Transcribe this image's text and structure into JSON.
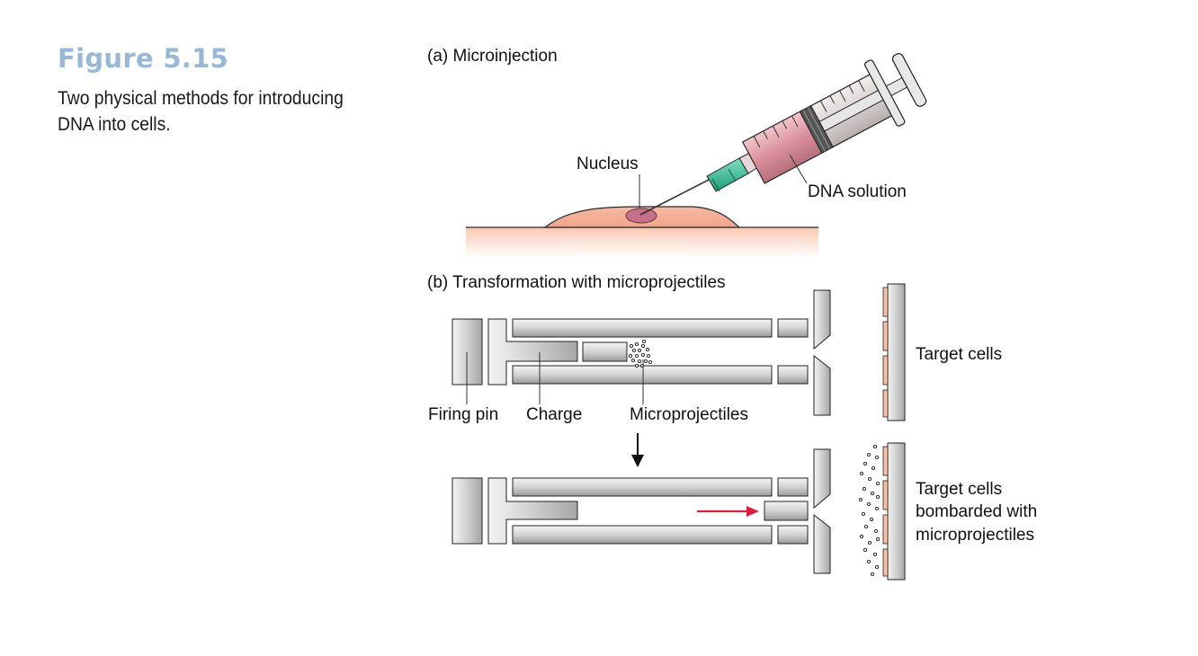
{
  "figure": {
    "title": "Figure 5.15",
    "caption": "Two physical methods for introducing DNA into cells."
  },
  "panel_a": {
    "heading": "(a) Microinjection",
    "labels": {
      "nucleus": "Nucleus",
      "dna_solution": "DNA solution"
    }
  },
  "panel_b": {
    "heading": "(b) Transformation with microprojectiles",
    "labels": {
      "firing_pin": "Firing pin",
      "charge": "Charge",
      "microprojectiles": "Microprojectiles",
      "target_cells": "Target cells",
      "bombarded_line1": "Target cells",
      "bombarded_line2": "bombarded with",
      "bombarded_line3": "microprojectiles"
    }
  },
  "colors": {
    "title_blue": "#98b8d6",
    "cell_pink": "#f4b7a0",
    "nucleus": "#c06a84",
    "dna_pink": "#d48a98",
    "needle_green": "#2bb08a",
    "red_arrow": "#d6213e"
  }
}
